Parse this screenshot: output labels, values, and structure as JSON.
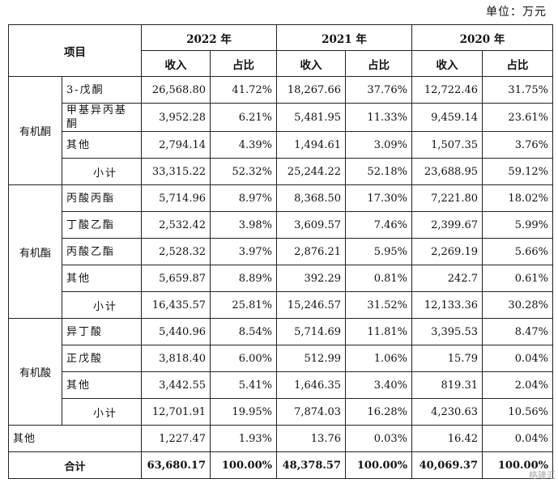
{
  "unit_label": "单位：万元",
  "header": {
    "item": "项目",
    "years": [
      "2022 年",
      "2021 年",
      "2020 年"
    ],
    "revenue": "收入",
    "share": "占比"
  },
  "groups": [
    {
      "name": "有机酮",
      "rows": [
        {
          "label": "3-戊酮",
          "values": [
            "26,568.80",
            "41.72%",
            "18,267.66",
            "37.76%",
            "12,722.46",
            "31.75%"
          ]
        },
        {
          "label": "甲基异丙基酮",
          "values": [
            "3,952.28",
            "6.21%",
            "5,481.95",
            "11.33%",
            "9,459.14",
            "23.61%"
          ]
        },
        {
          "label": "其他",
          "values": [
            "2,794.14",
            "4.39%",
            "1,494.61",
            "3.09%",
            "1,507.35",
            "3.76%"
          ]
        },
        {
          "label": "小计",
          "values": [
            "33,315.22",
            "52.32%",
            "25,244.22",
            "52.18%",
            "23,688.95",
            "59.12%"
          ]
        }
      ]
    },
    {
      "name": "有机酯",
      "rows": [
        {
          "label": "丙酸丙酯",
          "values": [
            "5,714.96",
            "8.97%",
            "8,368.50",
            "17.30%",
            "7,221.80",
            "18.02%"
          ]
        },
        {
          "label": "丁酸乙酯",
          "values": [
            "2,532.42",
            "3.98%",
            "3,609.57",
            "7.46%",
            "2,399.67",
            "5.99%"
          ]
        },
        {
          "label": "丙酸乙酯",
          "values": [
            "2,528.32",
            "3.97%",
            "2,876.21",
            "5.95%",
            "2,269.19",
            "5.66%"
          ]
        },
        {
          "label": "其他",
          "values": [
            "5,659.87",
            "8.89%",
            "392.29",
            "0.81%",
            "242.7",
            "0.61%"
          ]
        },
        {
          "label": "小计",
          "values": [
            "16,435.57",
            "25.81%",
            "15,246.57",
            "31.52%",
            "12,133.36",
            "30.28%"
          ]
        }
      ]
    },
    {
      "name": "有机酸",
      "rows": [
        {
          "label": "异丁酸",
          "values": [
            "5,440.96",
            "8.54%",
            "5,714.69",
            "11.81%",
            "3,395.53",
            "8.47%"
          ]
        },
        {
          "label": "正戊酸",
          "values": [
            "3,818.40",
            "6.00%",
            "512.99",
            "1.06%",
            "15.79",
            "0.04%"
          ]
        },
        {
          "label": "其他",
          "values": [
            "3,442.55",
            "5.41%",
            "1,646.35",
            "3.40%",
            "819.31",
            "2.04%"
          ]
        },
        {
          "label": "小计",
          "values": [
            "12,701.91",
            "19.95%",
            "7,874.03",
            "16.28%",
            "4,230.63",
            "10.56%"
          ]
        }
      ]
    }
  ],
  "other": {
    "label": "其他",
    "values": [
      "1,227.47",
      "1.93%",
      "13.76",
      "0.03%",
      "16.42",
      "0.04%"
    ]
  },
  "total": {
    "label": "合计",
    "values": [
      "63,680.17",
      "100.00%",
      "48,378.57",
      "100.00%",
      "40,069.37",
      "100.00%"
    ]
  },
  "watermark": "格隆汇"
}
